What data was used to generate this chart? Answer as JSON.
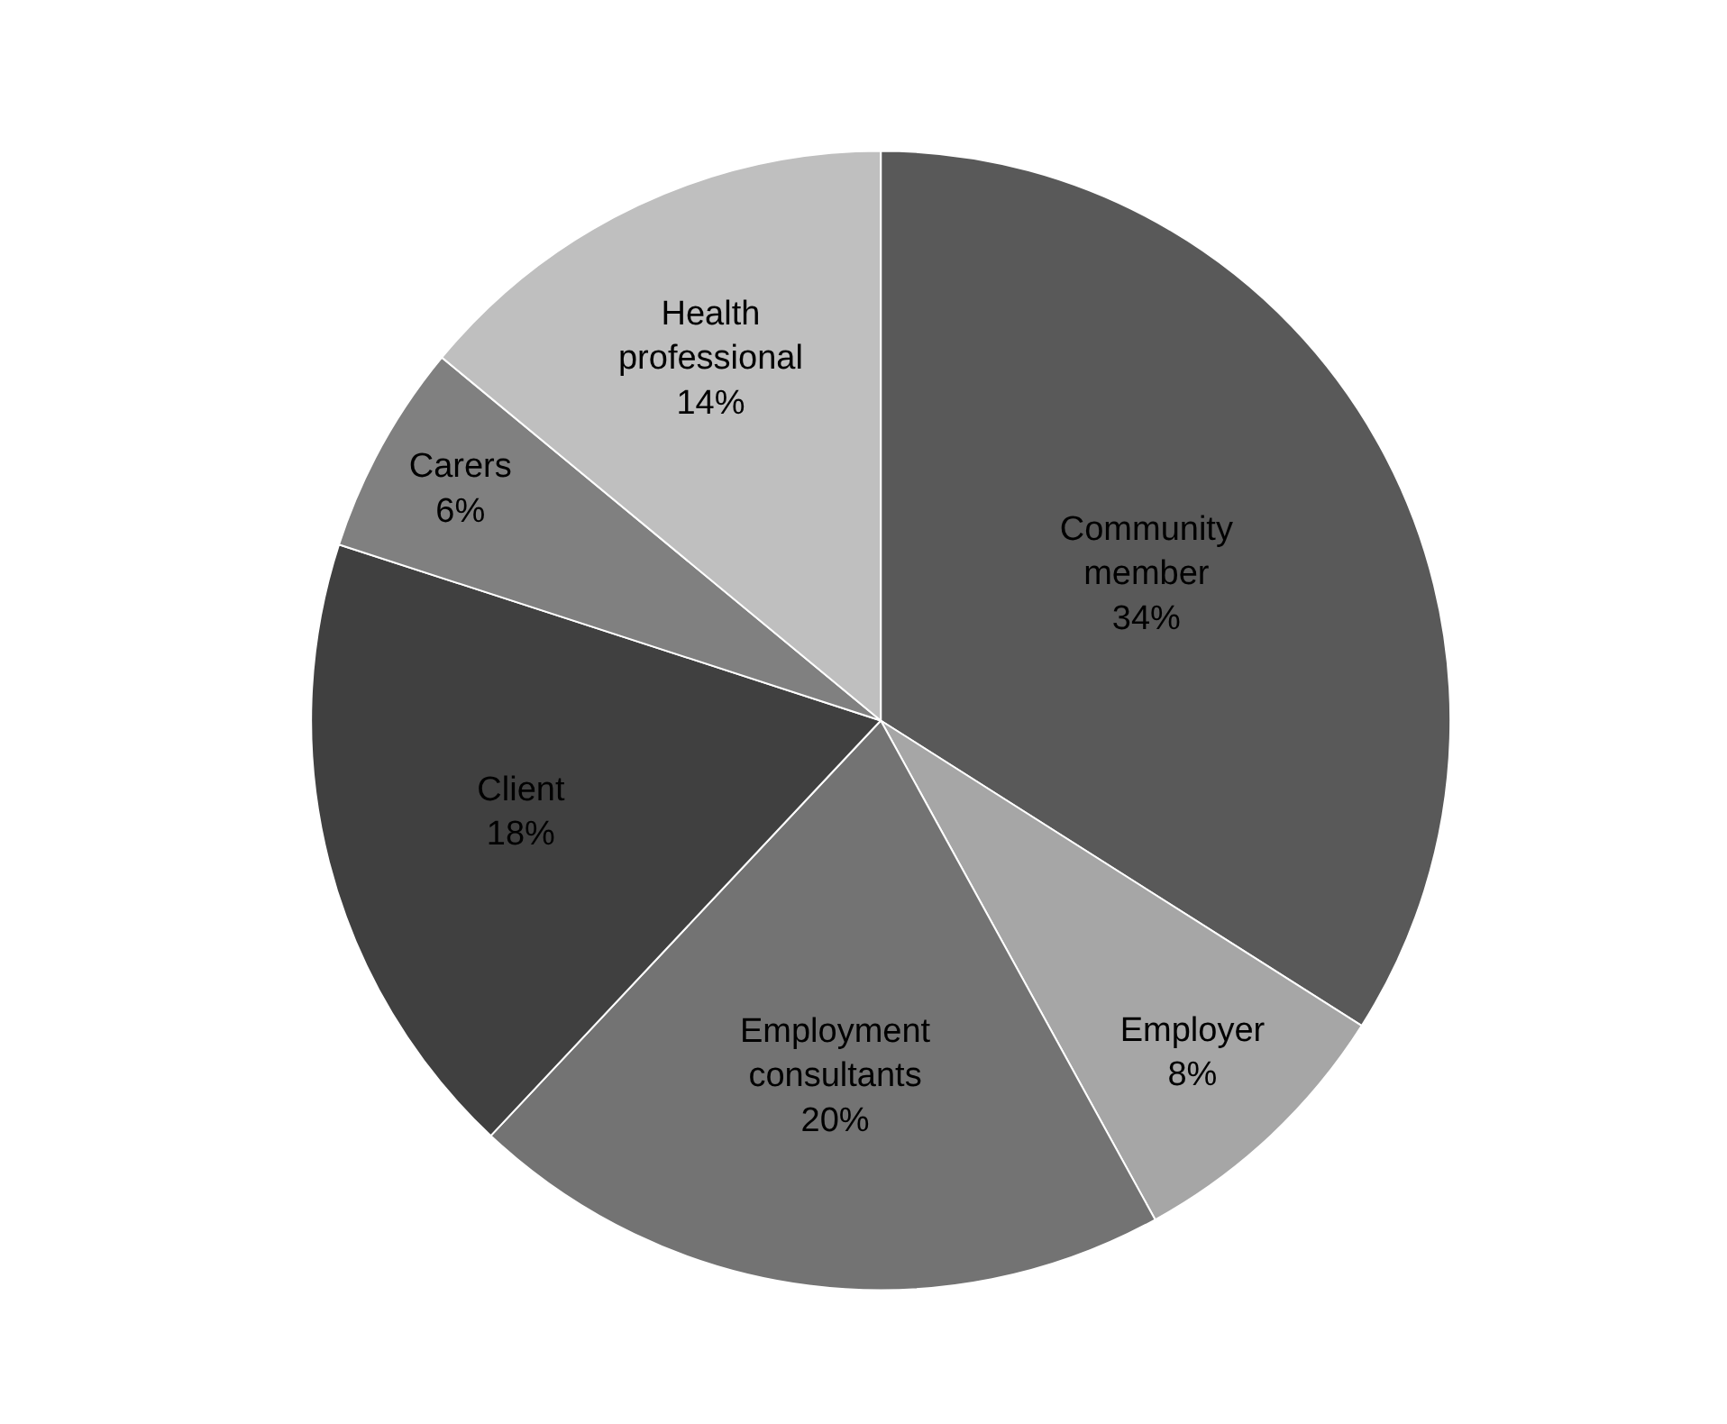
{
  "chart_data": {
    "type": "pie",
    "categories": [
      "Community member",
      "Employer",
      "Employment consultants",
      "Client",
      "Carers",
      "Health professional"
    ],
    "values": [
      34,
      8,
      20,
      18,
      6,
      14
    ],
    "colors": [
      "#595959",
      "#a6a6a6",
      "#737373",
      "#404040",
      "#808080",
      "#bfbfbf"
    ],
    "value_labels": [
      "34%",
      "8%",
      "20%",
      "18%",
      "6%",
      "14%"
    ],
    "legend": false
  }
}
